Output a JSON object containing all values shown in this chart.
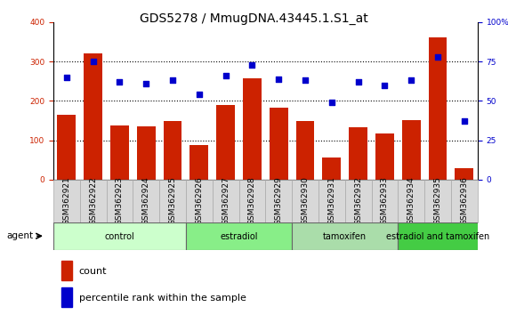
{
  "title": "GDS5278 / MmugDNA.43445.1.S1_at",
  "samples": [
    "GSM362921",
    "GSM362922",
    "GSM362923",
    "GSM362924",
    "GSM362925",
    "GSM362926",
    "GSM362927",
    "GSM362928",
    "GSM362929",
    "GSM362930",
    "GSM362931",
    "GSM362932",
    "GSM362933",
    "GSM362934",
    "GSM362935",
    "GSM362936"
  ],
  "counts": [
    165,
    320,
    138,
    135,
    148,
    88,
    190,
    258,
    183,
    148,
    55,
    132,
    118,
    150,
    362,
    28
  ],
  "percentiles": [
    65,
    75,
    62,
    61,
    63,
    54,
    66,
    73,
    64,
    63,
    49,
    62,
    60,
    63,
    78,
    37
  ],
  "bar_color": "#CC2200",
  "dot_color": "#0000CC",
  "ylim_left": [
    0,
    400
  ],
  "ylim_right": [
    0,
    100
  ],
  "yticks_left": [
    0,
    100,
    200,
    300,
    400
  ],
  "yticks_right": [
    0,
    25,
    50,
    75,
    100
  ],
  "groups": [
    {
      "label": "control",
      "start": 0,
      "end": 5,
      "color": "#ccffcc"
    },
    {
      "label": "estradiol",
      "start": 5,
      "end": 9,
      "color": "#88ee88"
    },
    {
      "label": "tamoxifen",
      "start": 9,
      "end": 13,
      "color": "#aaddaa"
    },
    {
      "label": "estradiol and tamoxifen",
      "start": 13,
      "end": 16,
      "color": "#44cc44"
    }
  ],
  "agent_label": "agent",
  "legend_count_label": "count",
  "legend_percentile_label": "percentile rank within the sample",
  "bar_color_red": "#CC2200",
  "dot_color_blue": "#0000CC",
  "title_fontsize": 10,
  "tick_fontsize": 6.5,
  "label_fontsize": 8,
  "bar_width": 0.7,
  "xtick_bg": "#d0d0d0",
  "grid_color": "black",
  "grid_style": "dotted",
  "grid_lw": 0.8
}
